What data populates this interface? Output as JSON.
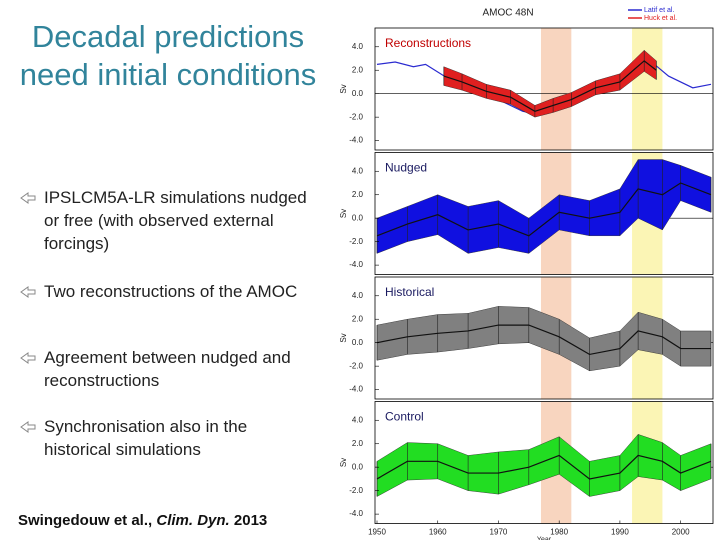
{
  "slide": {
    "title": "Decadal predictions need initial conditions",
    "bullets": [
      "IPSLCM5A-LR simulations nudged or free (with observed external forcings)",
      "Two reconstructions of the AMOC",
      "Agreement between nudged and reconstructions",
      "Synchronisation also in the historical simulations"
    ],
    "citation": {
      "authors": "Swingedouw et al.,",
      "journal": "Clim. Dyn.",
      "year": "2013"
    }
  },
  "chart_data": [
    {
      "type": "line",
      "title": "AMOC 48N",
      "panel_label": "Reconstructions",
      "label_color": "#c00000",
      "ylabel": "Sv",
      "xlim": [
        1950,
        2005
      ],
      "ylim": [
        -4.8,
        5.6
      ],
      "yticks": [
        {
          "value": 4,
          "label": "4.0"
        },
        {
          "value": 2,
          "label": "2.0"
        },
        {
          "value": 0,
          "label": "0.0"
        },
        {
          "value": -2,
          "label": "-2.0"
        },
        {
          "value": -4,
          "label": "-4.0"
        }
      ],
      "highlights": [
        {
          "range": [
            1977,
            1982
          ],
          "color": "#f8d5bf"
        },
        {
          "range": [
            1992,
            1997
          ],
          "color": "#fbf5b5"
        }
      ],
      "series": [
        {
          "name": "Latif et al.",
          "color": "#2a2ad0",
          "x": [
            1950,
            1953,
            1956,
            1958,
            1962,
            1966,
            1970,
            1974,
            1977,
            1980,
            1984,
            1988,
            1992,
            1995,
            1998,
            2002,
            2005
          ],
          "values": [
            2.5,
            2.7,
            2.3,
            2.5,
            1.2,
            0.5,
            -0.5,
            -1.5,
            -1.8,
            -1.0,
            -0.5,
            0.5,
            1.5,
            2.8,
            1.5,
            0.5,
            0.8
          ]
        },
        {
          "name": "Huck et al.",
          "color": "#e02020",
          "x": [
            1961,
            1964,
            1968,
            1972,
            1976,
            1979,
            1982,
            1986,
            1990,
            1994,
            1996
          ],
          "values": [
            1.5,
            1.0,
            0.2,
            -0.3,
            -1.5,
            -1.0,
            -0.5,
            0.5,
            1.0,
            2.8,
            2.0
          ],
          "spread": [
            0.8,
            0.7,
            0.6,
            0.6,
            0.5,
            0.6,
            0.6,
            0.6,
            0.7,
            0.9,
            0.8
          ]
        }
      ]
    },
    {
      "type": "line",
      "panel_label": "Nudged",
      "label_color": "#1a1a60",
      "ylabel": "Sv",
      "xlim": [
        1950,
        2005
      ],
      "ylim": [
        -4.8,
        5.6
      ],
      "yticks": [
        {
          "value": 4,
          "label": "4.0"
        },
        {
          "value": 2,
          "label": "2.0"
        },
        {
          "value": 0,
          "label": "0.0"
        },
        {
          "value": -2,
          "label": "-2.0"
        },
        {
          "value": -4,
          "label": "-4.0"
        }
      ],
      "highlights": [
        {
          "range": [
            1977,
            1982
          ],
          "color": "#f8d5bf"
        },
        {
          "range": [
            1992,
            1997
          ],
          "color": "#fbf5b5"
        }
      ],
      "series": [
        {
          "color": "#1010e0",
          "x": [
            1950,
            1955,
            1960,
            1965,
            1970,
            1975,
            1980,
            1985,
            1990,
            1993,
            1997,
            2000,
            2005
          ],
          "values": [
            -1.5,
            -0.5,
            0.3,
            -1.0,
            -0.5,
            -1.5,
            0.5,
            0.0,
            0.5,
            2.5,
            2.0,
            3.0,
            2.0
          ],
          "spread": [
            1.5,
            1.5,
            1.7,
            2.0,
            2.0,
            1.5,
            1.5,
            1.5,
            2.0,
            2.5,
            3.0,
            1.5,
            1.5
          ]
        }
      ]
    },
    {
      "type": "line",
      "panel_label": "Historical",
      "label_color": "#1a1a60",
      "ylabel": "Sv",
      "xlim": [
        1950,
        2005
      ],
      "ylim": [
        -4.8,
        5.6
      ],
      "yticks": [
        {
          "value": 4,
          "label": "4.0"
        },
        {
          "value": 2,
          "label": "2.0"
        },
        {
          "value": 0,
          "label": "0.0"
        },
        {
          "value": -2,
          "label": "-2.0"
        },
        {
          "value": -4,
          "label": "-4.0"
        }
      ],
      "highlights": [
        {
          "range": [
            1977,
            1982
          ],
          "color": "#f8d5bf"
        },
        {
          "range": [
            1992,
            1997
          ],
          "color": "#fbf5b5"
        }
      ],
      "series": [
        {
          "color": "#808080",
          "x": [
            1950,
            1955,
            1960,
            1965,
            1970,
            1975,
            1980,
            1985,
            1990,
            1993,
            1997,
            2000,
            2005
          ],
          "values": [
            0.0,
            0.5,
            0.8,
            1.0,
            1.5,
            1.5,
            0.5,
            -1.0,
            -0.5,
            1.0,
            0.5,
            -0.5,
            -0.5
          ],
          "spread": [
            1.5,
            1.5,
            1.6,
            1.5,
            1.6,
            1.5,
            1.5,
            1.4,
            1.5,
            1.6,
            1.5,
            1.5,
            1.5
          ]
        }
      ]
    },
    {
      "type": "line",
      "panel_label": "Control",
      "label_color": "#1a1a60",
      "ylabel": "Sv",
      "xlabel": "Year",
      "xlim": [
        1950,
        2005
      ],
      "ylim": [
        -4.8,
        5.6
      ],
      "xticks": [
        1950,
        1960,
        1970,
        1980,
        1990,
        2000
      ],
      "yticks": [
        {
          "value": 4,
          "label": "4.0"
        },
        {
          "value": 2,
          "label": "2.0"
        },
        {
          "value": 0,
          "label": "0.0"
        },
        {
          "value": -2,
          "label": "-2.0"
        },
        {
          "value": -4,
          "label": "-4.0"
        }
      ],
      "highlights": [
        {
          "range": [
            1977,
            1982
          ],
          "color": "#f8d5bf"
        },
        {
          "range": [
            1992,
            1997
          ],
          "color": "#fbf5b5"
        }
      ],
      "series": [
        {
          "color": "#22dd22",
          "x": [
            1950,
            1955,
            1960,
            1965,
            1970,
            1975,
            1980,
            1985,
            1990,
            1993,
            1997,
            2000,
            2005
          ],
          "values": [
            -1.0,
            0.5,
            0.5,
            -0.5,
            -0.5,
            0.0,
            1.0,
            -1.0,
            -0.5,
            1.0,
            0.5,
            -0.5,
            0.5
          ],
          "spread": [
            1.5,
            1.6,
            1.5,
            1.5,
            1.8,
            1.5,
            1.6,
            1.5,
            1.5,
            1.8,
            1.6,
            1.5,
            1.5
          ]
        }
      ]
    }
  ]
}
